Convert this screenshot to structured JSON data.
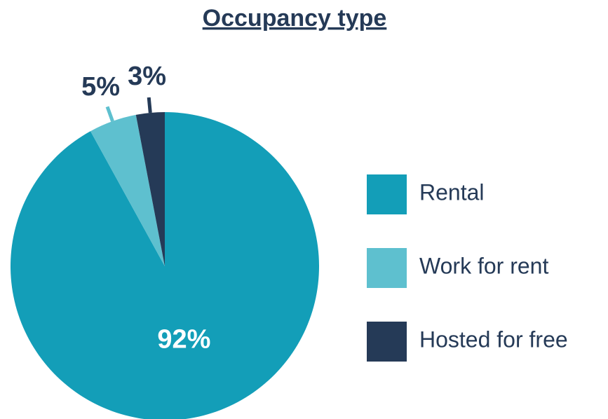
{
  "chart_data": {
    "type": "pie",
    "title": "Occupancy type",
    "categories": [
      "Rental",
      "Work for rent",
      "Hosted for free"
    ],
    "values": [
      92,
      5,
      3
    ],
    "value_labels": [
      "92%",
      "5%",
      "3%"
    ],
    "colors": [
      "#139eb8",
      "#5ec0cf",
      "#253a57"
    ],
    "legend": "right"
  }
}
